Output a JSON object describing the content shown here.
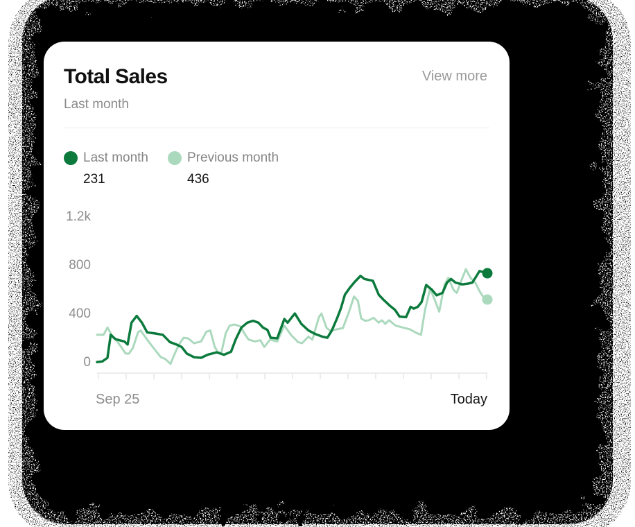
{
  "card": {
    "title": "Total Sales",
    "subtitle": "Last month",
    "action_label": "View more"
  },
  "legend": [
    {
      "label": "Last month",
      "value": "231",
      "color": "#0b7a3c"
    },
    {
      "label": "Previous month",
      "value": "436",
      "color": "#abd9bd"
    }
  ],
  "chart_data": {
    "type": "line",
    "title": "Total Sales",
    "xlabel": "",
    "ylabel": "",
    "x_axis": {
      "start_label": "Sep 25",
      "end_label": "Today",
      "tick_count": 15,
      "range_days": [
        0,
        30
      ]
    },
    "y_axis": {
      "labels": [
        "1.2k",
        "800",
        "400",
        "0"
      ],
      "values": [
        1200,
        800,
        400,
        0
      ],
      "ylim": [
        0,
        1200
      ]
    },
    "grid": false,
    "legend_position": "top-left",
    "series": [
      {
        "name": "Last month",
        "color": "#0b7a3c",
        "end_dot": true,
        "points": [
          [
            0,
            5
          ],
          [
            0.4,
            10
          ],
          [
            0.8,
            40
          ],
          [
            1.05,
            230
          ],
          [
            1.4,
            195
          ],
          [
            1.7,
            185
          ],
          [
            2.1,
            175
          ],
          [
            2.35,
            150
          ],
          [
            2.65,
            330
          ],
          [
            3.05,
            385
          ],
          [
            3.45,
            330
          ],
          [
            3.85,
            250
          ],
          [
            4.5,
            240
          ],
          [
            5.05,
            230
          ],
          [
            5.6,
            170
          ],
          [
            6.1,
            150
          ],
          [
            6.5,
            130
          ],
          [
            6.9,
            75
          ],
          [
            7.45,
            45
          ],
          [
            8,
            40
          ],
          [
            8.5,
            65
          ],
          [
            9.2,
            85
          ],
          [
            9.75,
            65
          ],
          [
            10.3,
            90
          ],
          [
            10.65,
            190
          ],
          [
            11.1,
            290
          ],
          [
            11.55,
            330
          ],
          [
            12,
            345
          ],
          [
            12.4,
            330
          ],
          [
            12.75,
            290
          ],
          [
            13.1,
            270
          ],
          [
            13.35,
            205
          ],
          [
            13.85,
            200
          ],
          [
            14.4,
            360
          ],
          [
            14.65,
            330
          ],
          [
            15.2,
            405
          ],
          [
            15.7,
            320
          ],
          [
            16.25,
            265
          ],
          [
            16.8,
            235
          ],
          [
            17.3,
            215
          ],
          [
            17.7,
            205
          ],
          [
            18.05,
            265
          ],
          [
            18.45,
            365
          ],
          [
            18.75,
            450
          ],
          [
            19.05,
            560
          ],
          [
            19.45,
            620
          ],
          [
            19.8,
            665
          ],
          [
            20.25,
            715
          ],
          [
            20.55,
            690
          ],
          [
            21.2,
            675
          ],
          [
            21.65,
            560
          ],
          [
            22,
            520
          ],
          [
            22.5,
            470
          ],
          [
            22.9,
            435
          ],
          [
            23.25,
            380
          ],
          [
            23.75,
            375
          ],
          [
            24.1,
            460
          ],
          [
            24.35,
            445
          ],
          [
            24.65,
            460
          ],
          [
            24.95,
            500
          ],
          [
            25.3,
            640
          ],
          [
            25.75,
            600
          ],
          [
            26.1,
            555
          ],
          [
            26.55,
            575
          ],
          [
            26.9,
            660
          ],
          [
            27.2,
            690
          ],
          [
            27.55,
            660
          ],
          [
            28.05,
            645
          ],
          [
            28.45,
            650
          ],
          [
            28.85,
            660
          ],
          [
            29.2,
            720
          ],
          [
            29.4,
            755
          ],
          [
            29.7,
            745
          ],
          [
            30,
            737
          ]
        ]
      },
      {
        "name": "Previous month",
        "color": "#abd9bd",
        "end_dot": true,
        "points": [
          [
            0,
            230
          ],
          [
            0.5,
            230
          ],
          [
            0.8,
            290
          ],
          [
            1.25,
            205
          ],
          [
            1.55,
            175
          ],
          [
            1.85,
            130
          ],
          [
            2.2,
            75
          ],
          [
            2.45,
            75
          ],
          [
            2.75,
            120
          ],
          [
            3.15,
            250
          ],
          [
            3.35,
            265
          ],
          [
            3.85,
            190
          ],
          [
            4.35,
            120
          ],
          [
            4.9,
            45
          ],
          [
            5.25,
            30
          ],
          [
            5.65,
            -10
          ],
          [
            5.95,
            70
          ],
          [
            6.3,
            150
          ],
          [
            6.65,
            205
          ],
          [
            7,
            200
          ],
          [
            7.45,
            160
          ],
          [
            8,
            175
          ],
          [
            8.4,
            255
          ],
          [
            8.7,
            265
          ],
          [
            9.05,
            130
          ],
          [
            9.3,
            85
          ],
          [
            9.55,
            80
          ],
          [
            9.9,
            245
          ],
          [
            10.2,
            305
          ],
          [
            10.55,
            315
          ],
          [
            11,
            300
          ],
          [
            11.4,
            230
          ],
          [
            11.65,
            190
          ],
          [
            12.15,
            175
          ],
          [
            12.55,
            185
          ],
          [
            12.85,
            130
          ],
          [
            13.3,
            190
          ],
          [
            13.85,
            175
          ],
          [
            14.4,
            305
          ],
          [
            14.9,
            230
          ],
          [
            15.45,
            170
          ],
          [
            15.75,
            160
          ],
          [
            16.25,
            215
          ],
          [
            16.55,
            190
          ],
          [
            17.05,
            375
          ],
          [
            17.25,
            405
          ],
          [
            17.65,
            285
          ],
          [
            17.9,
            265
          ],
          [
            18.45,
            275
          ],
          [
            18.9,
            285
          ],
          [
            19.4,
            430
          ],
          [
            19.75,
            545
          ],
          [
            20.05,
            510
          ],
          [
            20.3,
            365
          ],
          [
            20.6,
            345
          ],
          [
            20.9,
            350
          ],
          [
            21.25,
            370
          ],
          [
            21.65,
            330
          ],
          [
            21.9,
            350
          ],
          [
            22.15,
            320
          ],
          [
            22.45,
            350
          ],
          [
            22.95,
            305
          ],
          [
            23.5,
            290
          ],
          [
            24.05,
            275
          ],
          [
            24.55,
            245
          ],
          [
            24.9,
            230
          ],
          [
            25.2,
            430
          ],
          [
            25.6,
            610
          ],
          [
            25.95,
            520
          ],
          [
            26.3,
            420
          ],
          [
            26.7,
            640
          ],
          [
            27,
            700
          ],
          [
            27.4,
            600
          ],
          [
            27.65,
            575
          ],
          [
            28.05,
            690
          ],
          [
            28.35,
            770
          ],
          [
            28.7,
            700
          ],
          [
            29.1,
            655
          ],
          [
            29.4,
            590
          ],
          [
            29.7,
            540
          ],
          [
            30,
            520
          ]
        ]
      }
    ],
    "axis_color": "#ececec"
  },
  "colors": {
    "spray_black": "#000000",
    "card_background": "#ffffff"
  }
}
